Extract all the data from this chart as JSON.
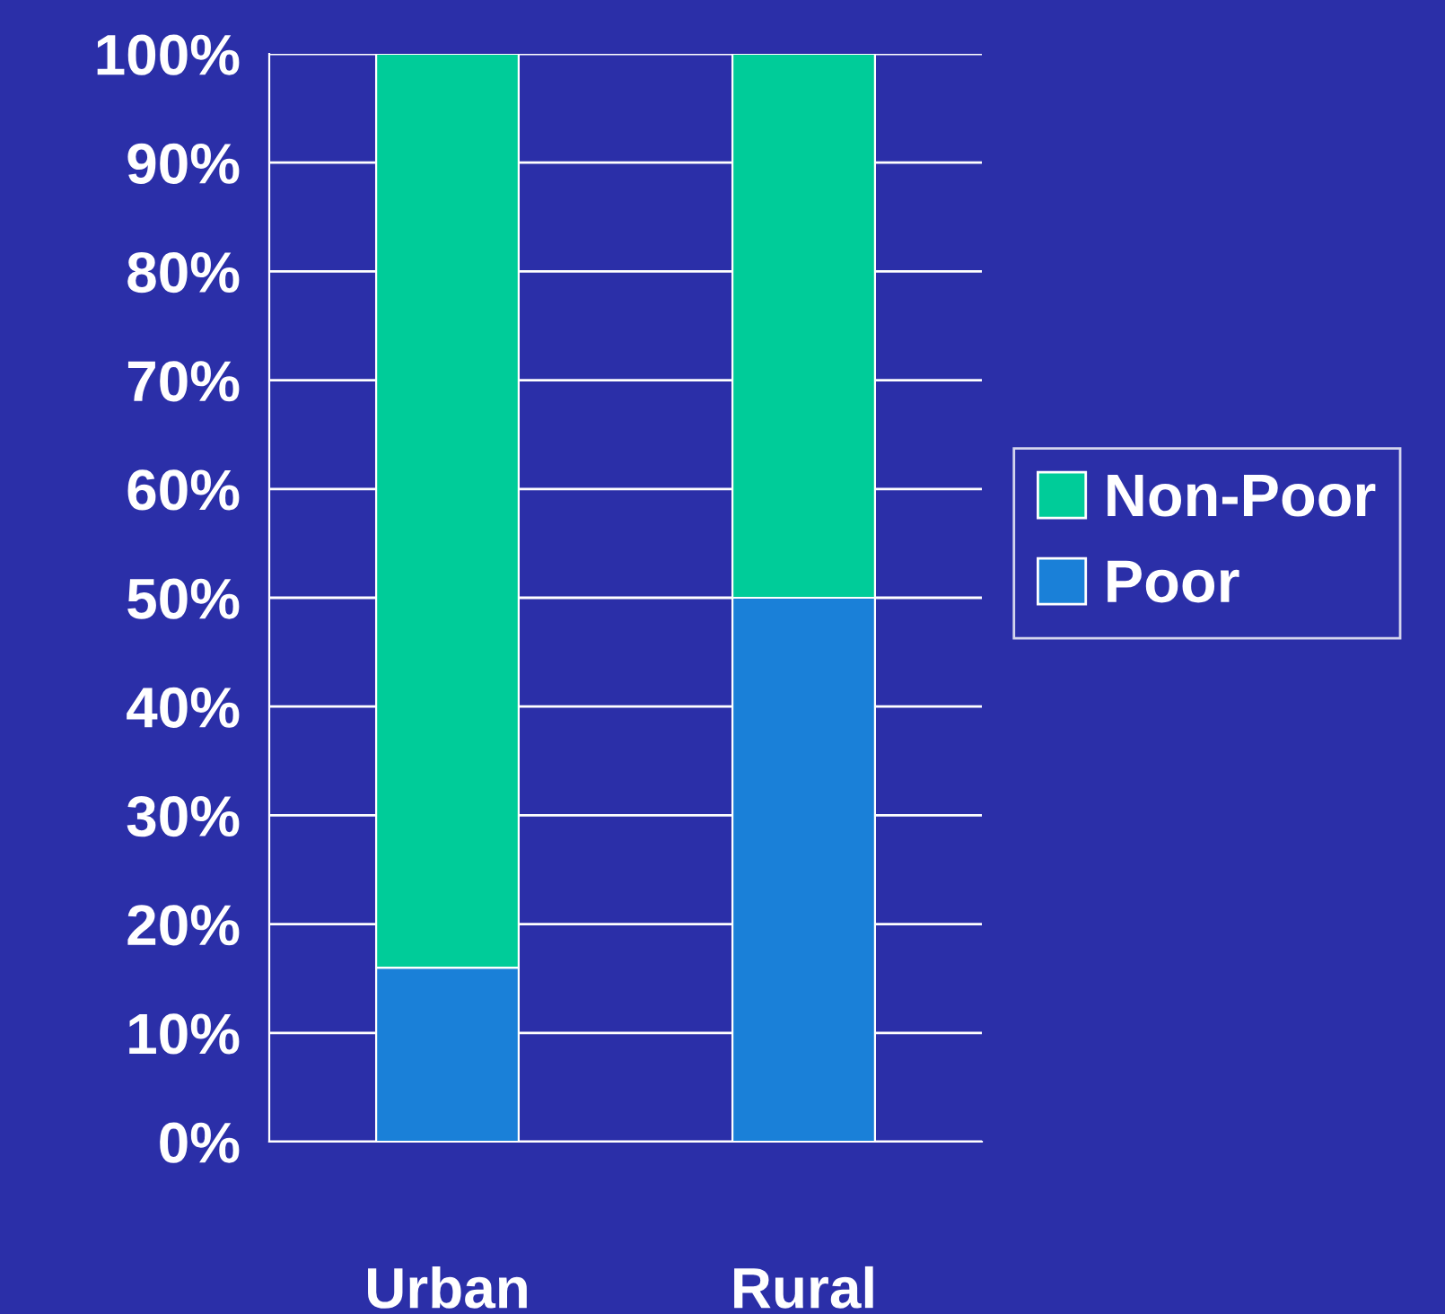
{
  "chart_data": {
    "type": "bar",
    "stacked": true,
    "categories": [
      "Urban",
      "Rural"
    ],
    "series": [
      {
        "name": "Poor",
        "color": "#1a80d8",
        "values": [
          16,
          50
        ]
      },
      {
        "name": "Non-Poor",
        "color": "#00cc99",
        "values": [
          84,
          50
        ]
      }
    ],
    "ylim": [
      0,
      100
    ],
    "yticks": [
      {
        "value": 0,
        "label": "0%"
      },
      {
        "value": 10,
        "label": "10%"
      },
      {
        "value": 20,
        "label": "20%"
      },
      {
        "value": 30,
        "label": "30%"
      },
      {
        "value": 40,
        "label": "40%"
      },
      {
        "value": 50,
        "label": "50%"
      },
      {
        "value": 60,
        "label": "60%"
      },
      {
        "value": 70,
        "label": "70%"
      },
      {
        "value": 80,
        "label": "80%"
      },
      {
        "value": 90,
        "label": "90%"
      },
      {
        "value": 100,
        "label": "100%"
      }
    ],
    "grid": "y",
    "legend": "right"
  }
}
